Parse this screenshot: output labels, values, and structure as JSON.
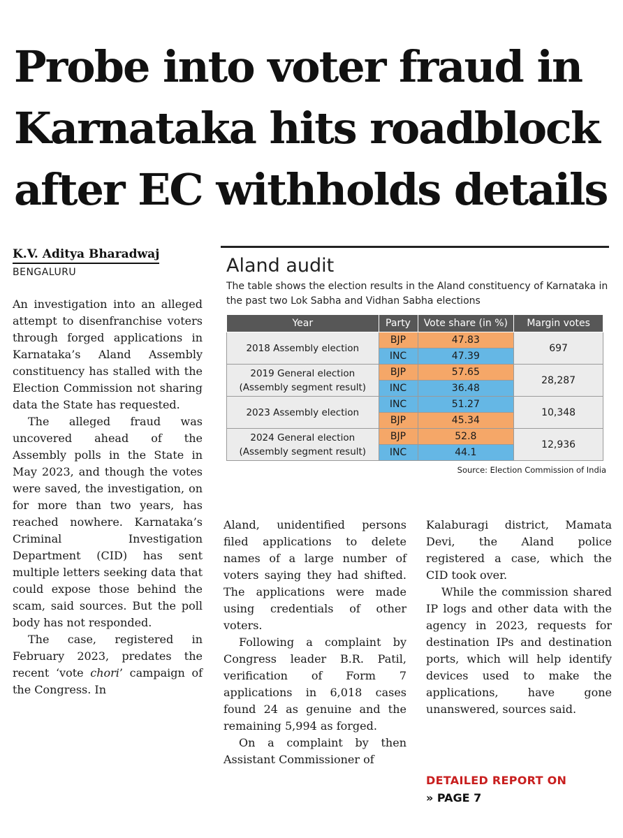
{
  "article": {
    "headline": [
      "Probe into voter fraud in",
      "Karnataka hits roadblock",
      "after EC withholds details"
    ],
    "author": "K.V. Aditya Bharadwaj",
    "dateline": "BENGALURU",
    "col1": [
      "An investigation into an alleged attempt to disenfranchise voters through forged applications in Karnataka’s Aland Assembly constituency has stalled with the Election Commission not sharing data the State has requested.",
      "The alleged fraud was uncovered ahead of the Assembly polls in the State in May 2023, and though the votes were saved, the investigation, on for more than two years, has reached nowhere. Karnataka’s Criminal Investigation Department (CID) has sent multiple letters seeking data that could expose those behind the scam, said sources. But the poll body has not responded."
    ],
    "col1_last": {
      "before": "The case, registered in February 2023, predates the recent ‘vote ",
      "emph": "chori",
      "after": "’ campaign of the Congress. In"
    },
    "col2": [
      "Aland, unidentified persons filed applications to delete names of a large number of voters saying they had shifted. The applications were made using credentials of other voters.",
      "Following a complaint by Congress leader B.R. Patil, verification of Form 7 applications in 6,018 cases found 24 as genuine and the remaining 5,994 as forged.",
      "On a complaint by then Assistant Commissioner of"
    ],
    "col3": [
      "Kalaburagi district, Mamata Devi, the Aland police registered a case, which the CID took over.",
      "While the commission shared IP logs and other data with the agency in 2023, requests for destination IPs and destination ports, which will help identify devices used to make the applications, have gone unanswered, sources said."
    ],
    "continued_label": "DETAILED REPORT ON",
    "continued_page": "» PAGE 7"
  },
  "infobox": {
    "title": "Aland audit",
    "subtitle": "The table shows the election results in the Aland constituency of Karnataka in the past two Lok Sabha and Vidhan Sabha elections",
    "headers": [
      "Year",
      "Party",
      "Vote share (in %)",
      "Margin votes"
    ],
    "rows": [
      {
        "year": [
          "2018 Assembly election"
        ],
        "margin": "697",
        "parties": [
          {
            "party": "BJP",
            "share": "47.83"
          },
          {
            "party": "INC",
            "share": "47.39"
          }
        ]
      },
      {
        "year": [
          "2019 General election",
          "(Assembly segment result)"
        ],
        "margin": "28,287",
        "parties": [
          {
            "party": "BJP",
            "share": "57.65"
          },
          {
            "party": "INC",
            "share": "36.48"
          }
        ]
      },
      {
        "year": [
          "2023 Assembly election"
        ],
        "margin": "10,348",
        "parties": [
          {
            "party": "INC",
            "share": "51.27"
          },
          {
            "party": "BJP",
            "share": "45.34"
          }
        ]
      },
      {
        "year": [
          "2024 General election",
          "(Assembly segment result)"
        ],
        "margin": "12,936",
        "parties": [
          {
            "party": "BJP",
            "share": "52.8"
          },
          {
            "party": "INC",
            "share": "44.1"
          }
        ]
      }
    ],
    "source": "Source: Election Commission of India",
    "colors": {
      "BJP": "#f5a768",
      "INC": "#65b7e5",
      "header": "#575757"
    }
  }
}
